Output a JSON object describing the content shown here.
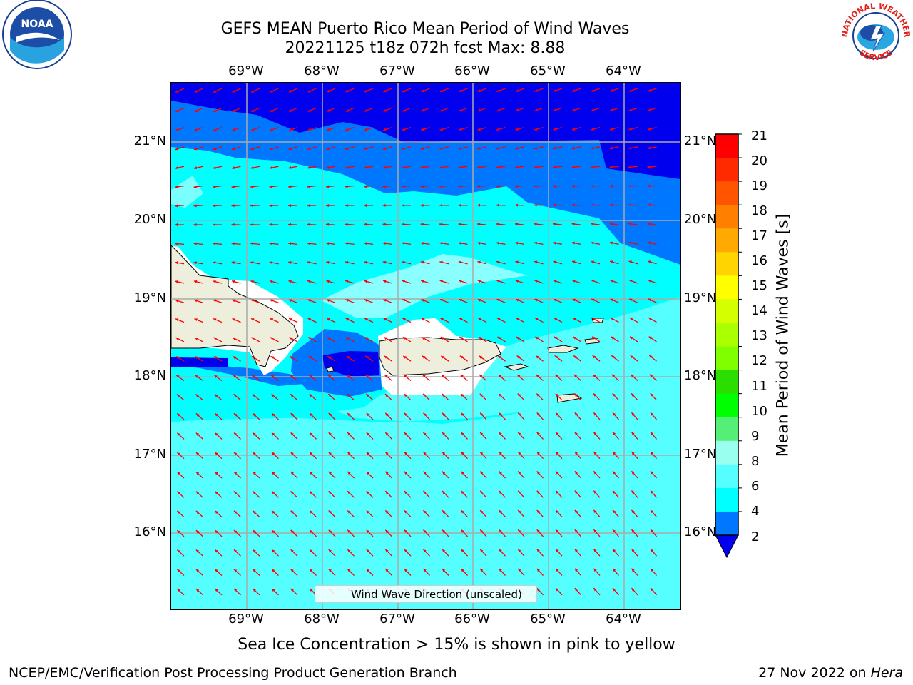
{
  "title_line1": "GEFS MEAN Puerto Rico Mean Period of Wind Waves",
  "title_line2": "20221125 t18z 072h fcst   Max: 8.88",
  "lon_labels": [
    "69°W",
    "68°W",
    "67°W",
    "66°W",
    "65°W",
    "64°W"
  ],
  "lat_labels": [
    "21°N",
    "20°N",
    "19°N",
    "18°N",
    "17°N",
    "16°N"
  ],
  "legend_text": "Wind Wave Direction (unscaled)",
  "colorbar": {
    "label": "Mean Period of Wind Waves [s]",
    "ticks": [
      "21",
      "20",
      "19",
      "18",
      "17",
      "16",
      "15",
      "14",
      "13",
      "12",
      "11",
      "10",
      "9",
      "8",
      "6",
      "4",
      "2"
    ],
    "colors": [
      "#ff0000",
      "#ff2a00",
      "#ff5500",
      "#ff8000",
      "#ffaa00",
      "#ffd400",
      "#ffff00",
      "#d4ff00",
      "#aaff00",
      "#7fff00",
      "#2adf00",
      "#00ff00",
      "#55ee77",
      "#99ffee",
      "#55ffff",
      "#00ffff",
      "#0077ff"
    ],
    "under_color": "#0000ee"
  },
  "map_colors": {
    "dark_blue": "#0000ee",
    "mid_blue": "#0077ff",
    "cyan": "#00ffff",
    "light_cyan": "#55ffff",
    "pale_cyan": "#99ffff",
    "land": "#eeeedd",
    "arrow": "#ff0000"
  },
  "footer_note": "Sea Ice Concentration > 15% is shown in pink to yellow",
  "footer_left": "NCEP/EMC/Verification Post Processing Product Generation Branch",
  "footer_date": "27 Nov 2022 on ",
  "footer_host": "Hera",
  "logos": {
    "left": "NOAA",
    "right_top": "NATIONAL WEATHER",
    "right_bottom": "SERVICE"
  }
}
